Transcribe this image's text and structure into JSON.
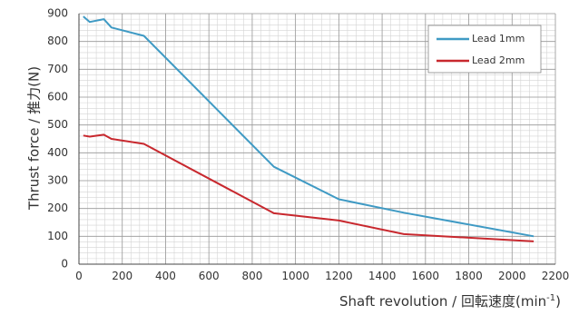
{
  "chart_data": {
    "type": "line",
    "xlabel": "Shaft revolution / 回転速度",
    "xlabel_unit_prefix": "(min",
    "xlabel_unit_sup": "-1",
    "xlabel_unit_suffix": ")",
    "ylabel": "Thrust force / 推力(N)",
    "xlim": [
      0,
      2200
    ],
    "ylim": [
      0,
      900
    ],
    "xticks": [
      0,
      200,
      400,
      600,
      800,
      1000,
      1200,
      1400,
      1600,
      1800,
      2000,
      2200
    ],
    "yticks": [
      0,
      100,
      200,
      300,
      400,
      500,
      600,
      700,
      800,
      900
    ],
    "grid": true,
    "legend_position": "top-right",
    "series": [
      {
        "name": "Lead 1mm",
        "color": "#3f9ac4",
        "x": [
          20,
          50,
          115,
          150,
          300,
          900,
          1200,
          1500,
          2100
        ],
        "y": [
          890,
          870,
          880,
          850,
          820,
          350,
          233,
          185,
          100
        ]
      },
      {
        "name": "Lead 2mm",
        "color": "#c8282e",
        "x": [
          20,
          50,
          115,
          150,
          300,
          900,
          1200,
          1500,
          2100
        ],
        "y": [
          462,
          458,
          465,
          450,
          432,
          183,
          157,
          108,
          82
        ]
      }
    ]
  }
}
